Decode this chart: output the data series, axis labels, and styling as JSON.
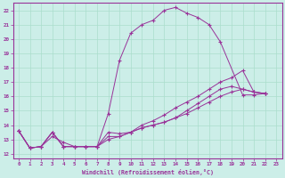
{
  "xlabel": "Windchill (Refroidissement éolien,°C)",
  "background_color": "#cceee8",
  "grid_color": "#aaddcc",
  "line_color": "#993399",
  "xlim": [
    -0.5,
    23.5
  ],
  "ylim": [
    11.7,
    22.5
  ],
  "xticks": [
    0,
    1,
    2,
    3,
    4,
    5,
    6,
    7,
    8,
    9,
    10,
    11,
    12,
    13,
    14,
    15,
    16,
    17,
    18,
    19,
    20,
    21,
    22,
    23
  ],
  "yticks": [
    12,
    13,
    14,
    15,
    16,
    17,
    18,
    19,
    20,
    21,
    22
  ],
  "curve1_x": [
    0,
    1,
    2,
    3,
    4,
    5,
    6,
    7,
    8,
    9,
    10,
    11,
    12,
    13,
    14,
    15,
    16,
    17,
    18,
    20,
    21,
    22
  ],
  "curve1_y": [
    13.6,
    12.4,
    12.5,
    13.5,
    12.5,
    12.5,
    12.5,
    12.5,
    14.8,
    18.5,
    20.4,
    21.0,
    21.3,
    22.0,
    22.2,
    21.8,
    21.5,
    21.0,
    19.8,
    16.1,
    16.1,
    16.2
  ],
  "curve2_x": [
    0,
    1,
    2,
    3,
    4,
    5,
    6,
    7,
    8,
    9,
    10,
    11,
    12,
    13,
    14,
    15,
    16,
    17,
    18,
    19,
    20,
    21,
    22
  ],
  "curve2_y": [
    13.6,
    12.4,
    12.5,
    13.2,
    12.8,
    12.5,
    12.5,
    12.5,
    13.5,
    13.4,
    13.5,
    14.0,
    14.3,
    14.7,
    15.2,
    15.6,
    16.0,
    16.5,
    17.0,
    17.3,
    17.8,
    16.3,
    16.2
  ],
  "curve3_x": [
    0,
    1,
    2,
    3,
    4,
    5,
    6,
    7,
    8,
    9,
    10,
    11,
    12,
    13,
    14,
    15,
    16,
    17,
    18,
    19,
    20,
    21,
    22
  ],
  "curve3_y": [
    13.6,
    12.4,
    12.5,
    13.5,
    12.5,
    12.5,
    12.5,
    12.5,
    13.2,
    13.2,
    13.5,
    13.8,
    14.0,
    14.2,
    14.5,
    14.8,
    15.2,
    15.6,
    16.0,
    16.3,
    16.5,
    16.3,
    16.2
  ],
  "curve4_x": [
    0,
    1,
    2,
    3,
    4,
    5,
    6,
    7,
    8,
    9,
    10,
    11,
    12,
    13,
    14,
    15,
    16,
    17,
    18,
    19,
    20,
    21,
    22
  ],
  "curve4_y": [
    13.6,
    12.4,
    12.5,
    13.5,
    12.5,
    12.5,
    12.5,
    12.5,
    13.0,
    13.2,
    13.5,
    13.8,
    14.0,
    14.2,
    14.5,
    15.0,
    15.5,
    16.0,
    16.5,
    16.7,
    16.5,
    16.3,
    16.2
  ]
}
